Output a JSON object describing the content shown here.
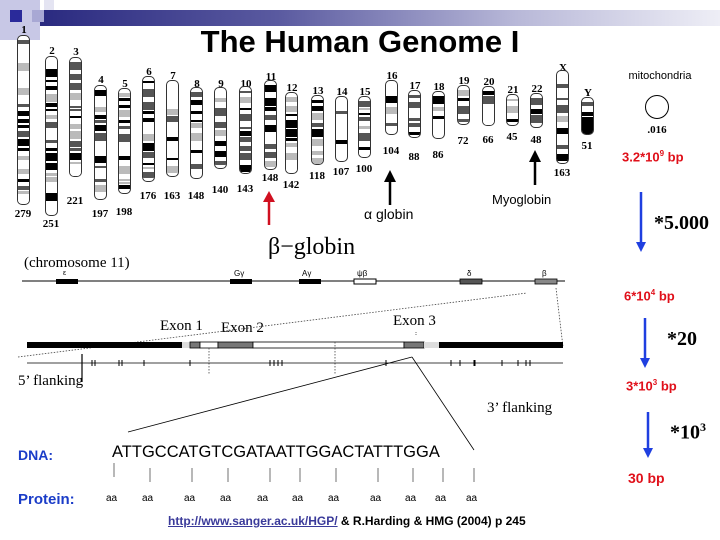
{
  "header": {
    "title": "The Human Genome I"
  },
  "karyotype": {
    "chromosomes": [
      {
        "label": "1",
        "size": "279"
      },
      {
        "label": "2",
        "size": "251"
      },
      {
        "label": "3",
        "size": "221"
      },
      {
        "label": "4",
        "size": "197"
      },
      {
        "label": "5",
        "size": "198"
      },
      {
        "label": "6",
        "size": "176"
      },
      {
        "label": "7",
        "size": "163"
      },
      {
        "label": "8",
        "size": "148"
      },
      {
        "label": "9",
        "size": "140"
      },
      {
        "label": "10",
        "size": "143"
      },
      {
        "label": "11",
        "size": "148"
      },
      {
        "label": "12",
        "size": "142"
      },
      {
        "label": "13",
        "size": "118"
      },
      {
        "label": "14",
        "size": "107"
      },
      {
        "label": "15",
        "size": "100"
      },
      {
        "label": "16",
        "size": "104"
      },
      {
        "label": "17",
        "size": "88"
      },
      {
        "label": "18",
        "size": "86"
      },
      {
        "label": "19",
        "size": "72"
      },
      {
        "label": "20",
        "size": "66"
      },
      {
        "label": "21",
        "size": "45"
      },
      {
        "label": "22",
        "size": "48"
      },
      {
        "label": "X",
        "size": "163"
      },
      {
        "label": "Y",
        "size": "51"
      }
    ],
    "mitochondria": {
      "label": "mitochondria",
      "size": ".016"
    },
    "alpha_globin_label": "α globin",
    "myoglobin_label": "Myoglobin"
  },
  "scale": {
    "genome_bp": "3.2*10",
    "genome_exp": "9",
    "genome_unit": " bp",
    "factor1": "*5.000",
    "region_bp": "6*10",
    "region_exp": "4",
    "region_unit": " bp",
    "factor2": "*20",
    "gene_bp": "3*10",
    "gene_exp": "3",
    "gene_unit": " bp",
    "factor3": "*10",
    "factor3_exp": "3",
    "codon_bp": "30 bp"
  },
  "globin_locus": {
    "title": "β−globin",
    "chromosome": "(chromosome 11)",
    "genes": [
      {
        "label": "ε"
      },
      {
        "label": "Gγ"
      },
      {
        "label": "Aγ"
      },
      {
        "label": "ψβ"
      },
      {
        "label": "δ"
      },
      {
        "label": "β"
      }
    ]
  },
  "gene_structure": {
    "exon1": "Exon 1",
    "exon2": "Exon 2",
    "exon3": "Exon 3",
    "flank5": "5’ flanking",
    "flank3": "3’ flanking"
  },
  "sequence": {
    "dna_label": "DNA:",
    "dna": "ATTGCCATGTCGATAATTGGACTATTTGGA",
    "protein_label": "Protein:",
    "aa": [
      "aa",
      "aa",
      "aa",
      "aa",
      "aa",
      "aa",
      "aa",
      "aa",
      "aa",
      "aa",
      "aa"
    ]
  },
  "footer": {
    "link": "http://www.sanger.ac.uk/HGP/",
    "citation": " & R.Harding & HMG (2004) p 245"
  },
  "colors": {
    "red": "#e0101a",
    "blue": "#1a3cc8",
    "arrow_blue": "#1f3fe0",
    "header_bar": "#2a2a80"
  }
}
